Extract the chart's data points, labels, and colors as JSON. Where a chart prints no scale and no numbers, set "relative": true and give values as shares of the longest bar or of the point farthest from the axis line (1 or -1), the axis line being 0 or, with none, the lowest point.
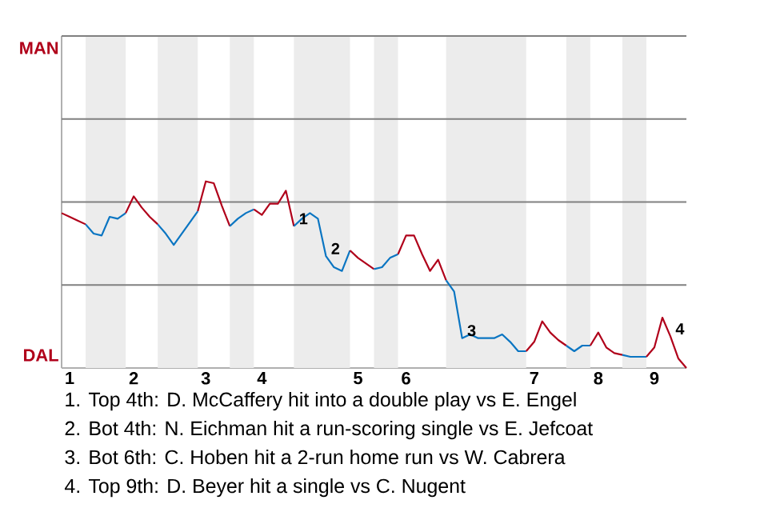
{
  "chart_data": {
    "type": "line",
    "relative": true,
    "categories": [
      null,
      "1",
      null,
      null,
      null,
      null,
      null,
      null,
      null,
      "2",
      null,
      null,
      null,
      null,
      null,
      null,
      null,
      null,
      "3",
      null,
      null,
      null,
      null,
      null,
      null,
      "4",
      null,
      null,
      null,
      null,
      null,
      null,
      null,
      null,
      null,
      null,
      null,
      "5",
      null,
      null,
      null,
      null,
      null,
      "6",
      null,
      null,
      null,
      null,
      null,
      null,
      null,
      null,
      null,
      null,
      null,
      null,
      null,
      null,
      null,
      "7",
      null,
      null,
      null,
      null,
      null,
      null,
      null,
      "8",
      null,
      null,
      null,
      null,
      null,
      null,
      "9",
      null,
      null,
      null,
      null
    ],
    "marker": "none",
    "line_style": "solid",
    "ref_lines": [
      {
        "axis": "y",
        "value": 0.445,
        "color": "#808080"
      },
      {
        "axis": "y",
        "value": 0.89,
        "color": "#808080"
      },
      {
        "axis": "y",
        "value": 1.334,
        "color": "#808080"
      },
      {
        "axis": "y",
        "value": 1.779,
        "color": "#808080"
      }
    ],
    "series": [
      {
        "color": "#b0001a",
        "values": [
          0.83,
          0.81,
          0.79,
          0.77,
          null,
          null,
          null,
          null,
          null,
          null,
          null,
          null,
          null,
          null,
          null,
          null,
          null,
          null,
          null,
          null,
          null,
          null,
          null,
          null,
          null,
          null,
          null,
          null,
          null,
          null,
          null,
          null,
          null,
          null,
          null,
          null,
          null,
          null,
          null,
          null,
          null,
          null,
          null,
          null,
          null,
          null,
          null,
          null,
          null,
          null,
          null,
          null,
          null,
          null,
          null,
          null,
          null,
          null,
          null,
          null,
          null,
          null,
          null,
          null,
          null,
          null,
          null,
          null,
          null,
          null,
          null,
          null,
          null,
          null,
          null,
          null,
          null,
          null,
          null
        ]
      },
      {
        "color": "#0a75c2",
        "values": [
          null,
          null,
          null,
          0.77,
          0.72,
          0.71,
          0.81,
          0.8,
          0.83,
          null,
          null,
          null,
          null,
          null,
          null,
          null,
          null,
          null,
          null,
          null,
          null,
          null,
          null,
          null,
          null,
          null,
          null,
          null,
          null,
          null,
          null,
          null,
          null,
          null,
          null,
          null,
          null,
          null,
          null,
          null,
          null,
          null,
          null,
          null,
          null,
          null,
          null,
          null,
          null,
          null,
          null,
          null,
          null,
          null,
          null,
          null,
          null,
          null,
          null,
          null,
          null,
          null,
          null,
          null,
          null,
          null,
          null,
          null,
          null,
          null,
          null,
          null,
          null,
          null,
          null,
          null,
          null,
          null,
          null
        ]
      },
      {
        "color": "#b0001a",
        "values": [
          null,
          null,
          null,
          null,
          null,
          null,
          null,
          null,
          0.83,
          0.92,
          0.86,
          0.81,
          0.77,
          null,
          null,
          null,
          null,
          null,
          null,
          null,
          null,
          null,
          null,
          null,
          null,
          null,
          null,
          null,
          null,
          null,
          null,
          null,
          null,
          null,
          null,
          null,
          null,
          null,
          null,
          null,
          null,
          null,
          null,
          null,
          null,
          null,
          null,
          null,
          null,
          null,
          null,
          null,
          null,
          null,
          null,
          null,
          null,
          null,
          null,
          null,
          null,
          null,
          null,
          null,
          null,
          null,
          null,
          null,
          null,
          null,
          null,
          null,
          null,
          null,
          null,
          null,
          null,
          null,
          null
        ]
      },
      {
        "color": "#0a75c2",
        "values": [
          null,
          null,
          null,
          null,
          null,
          null,
          null,
          null,
          null,
          null,
          null,
          null,
          0.77,
          0.72,
          0.66,
          0.72,
          0.78,
          0.84,
          null,
          null,
          null,
          null,
          null,
          null,
          null,
          null,
          null,
          null,
          null,
          null,
          null,
          null,
          null,
          null,
          null,
          null,
          null,
          null,
          null,
          null,
          null,
          null,
          null,
          null,
          null,
          null,
          null,
          null,
          null,
          null,
          null,
          null,
          null,
          null,
          null,
          null,
          null,
          null,
          null,
          null,
          null,
          null,
          null,
          null,
          null,
          null,
          null,
          null,
          null,
          null,
          null,
          null,
          null,
          null,
          null,
          null,
          null,
          null,
          null
        ]
      },
      {
        "color": "#b0001a",
        "values": [
          null,
          null,
          null,
          null,
          null,
          null,
          null,
          null,
          null,
          null,
          null,
          null,
          null,
          null,
          null,
          null,
          null,
          0.84,
          1,
          0.99,
          0.87,
          0.76,
          null,
          null,
          null,
          null,
          null,
          null,
          null,
          null,
          null,
          null,
          null,
          null,
          null,
          null,
          null,
          null,
          null,
          null,
          null,
          null,
          null,
          null,
          null,
          null,
          null,
          null,
          null,
          null,
          null,
          null,
          null,
          null,
          null,
          null,
          null,
          null,
          null,
          null,
          null,
          null,
          null,
          null,
          null,
          null,
          null,
          null,
          null,
          null,
          null,
          null,
          null,
          null,
          null,
          null,
          null,
          null,
          null
        ]
      },
      {
        "color": "#0a75c2",
        "values": [
          null,
          null,
          null,
          null,
          null,
          null,
          null,
          null,
          null,
          null,
          null,
          null,
          null,
          null,
          null,
          null,
          null,
          null,
          null,
          null,
          null,
          0.76,
          0.8,
          0.83,
          0.85,
          null,
          null,
          null,
          null,
          null,
          null,
          null,
          null,
          null,
          null,
          null,
          null,
          null,
          null,
          null,
          null,
          null,
          null,
          null,
          null,
          null,
          null,
          null,
          null,
          null,
          null,
          null,
          null,
          null,
          null,
          null,
          null,
          null,
          null,
          null,
          null,
          null,
          null,
          null,
          null,
          null,
          null,
          null,
          null,
          null,
          null,
          null,
          null,
          null,
          null,
          null,
          null,
          null,
          null
        ]
      },
      {
        "color": "#b0001a",
        "values": [
          null,
          null,
          null,
          null,
          null,
          null,
          null,
          null,
          null,
          null,
          null,
          null,
          null,
          null,
          null,
          null,
          null,
          null,
          null,
          null,
          null,
          null,
          null,
          null,
          0.85,
          0.82,
          0.88,
          0.88,
          0.95,
          0.76,
          null,
          null,
          null,
          null,
          null,
          null,
          null,
          null,
          null,
          null,
          null,
          null,
          null,
          null,
          null,
          null,
          null,
          null,
          null,
          null,
          null,
          null,
          null,
          null,
          null,
          null,
          null,
          null,
          null,
          null,
          null,
          null,
          null,
          null,
          null,
          null,
          null,
          null,
          null,
          null,
          null,
          null,
          null,
          null,
          null,
          null,
          null,
          null,
          null
        ]
      },
      {
        "color": "#0a75c2",
        "values": [
          null,
          null,
          null,
          null,
          null,
          null,
          null,
          null,
          null,
          null,
          null,
          null,
          null,
          null,
          null,
          null,
          null,
          null,
          null,
          null,
          null,
          null,
          null,
          null,
          null,
          null,
          null,
          null,
          null,
          0.76,
          0.8,
          0.83,
          0.8,
          0.6,
          0.54,
          0.52,
          0.63,
          null,
          null,
          null,
          null,
          null,
          null,
          null,
          null,
          null,
          null,
          null,
          null,
          null,
          null,
          null,
          null,
          null,
          null,
          null,
          null,
          null,
          null,
          null,
          null,
          null,
          null,
          null,
          null,
          null,
          null,
          null,
          null,
          null,
          null,
          null,
          null,
          null,
          null,
          null,
          null,
          null,
          null
        ]
      },
      {
        "color": "#b0001a",
        "values": [
          null,
          null,
          null,
          null,
          null,
          null,
          null,
          null,
          null,
          null,
          null,
          null,
          null,
          null,
          null,
          null,
          null,
          null,
          null,
          null,
          null,
          null,
          null,
          null,
          null,
          null,
          null,
          null,
          null,
          null,
          null,
          null,
          null,
          null,
          null,
          null,
          0.63,
          0.59,
          0.56,
          0.53,
          null,
          null,
          null,
          null,
          null,
          null,
          null,
          null,
          null,
          null,
          null,
          null,
          null,
          null,
          null,
          null,
          null,
          null,
          null,
          null,
          null,
          null,
          null,
          null,
          null,
          null,
          null,
          null,
          null,
          null,
          null,
          null,
          null,
          null,
          null,
          null,
          null,
          null,
          null
        ]
      },
      {
        "color": "#0a75c2",
        "values": [
          null,
          null,
          null,
          null,
          null,
          null,
          null,
          null,
          null,
          null,
          null,
          null,
          null,
          null,
          null,
          null,
          null,
          null,
          null,
          null,
          null,
          null,
          null,
          null,
          null,
          null,
          null,
          null,
          null,
          null,
          null,
          null,
          null,
          null,
          null,
          null,
          null,
          null,
          null,
          0.53,
          0.54,
          0.59,
          0.61,
          null,
          null,
          null,
          null,
          null,
          null,
          null,
          null,
          null,
          null,
          null,
          null,
          null,
          null,
          null,
          null,
          null,
          null,
          null,
          null,
          null,
          null,
          null,
          null,
          null,
          null,
          null,
          null,
          null,
          null,
          null,
          null,
          null,
          null,
          null,
          null
        ]
      },
      {
        "color": "#b0001a",
        "values": [
          null,
          null,
          null,
          null,
          null,
          null,
          null,
          null,
          null,
          null,
          null,
          null,
          null,
          null,
          null,
          null,
          null,
          null,
          null,
          null,
          null,
          null,
          null,
          null,
          null,
          null,
          null,
          null,
          null,
          null,
          null,
          null,
          null,
          null,
          null,
          null,
          null,
          null,
          null,
          null,
          null,
          null,
          0.61,
          0.71,
          0.71,
          0.61,
          0.52,
          0.58,
          0.47,
          null,
          null,
          null,
          null,
          null,
          null,
          null,
          null,
          null,
          null,
          null,
          null,
          null,
          null,
          null,
          null,
          null,
          null,
          null,
          null,
          null,
          null,
          null,
          null,
          null,
          null,
          null,
          null,
          null,
          null
        ]
      },
      {
        "color": "#0a75c2",
        "values": [
          null,
          null,
          null,
          null,
          null,
          null,
          null,
          null,
          null,
          null,
          null,
          null,
          null,
          null,
          null,
          null,
          null,
          null,
          null,
          null,
          null,
          null,
          null,
          null,
          null,
          null,
          null,
          null,
          null,
          null,
          null,
          null,
          null,
          null,
          null,
          null,
          null,
          null,
          null,
          null,
          null,
          null,
          null,
          null,
          null,
          null,
          null,
          null,
          0.47,
          0.41,
          0.16,
          0.18,
          0.16,
          0.16,
          0.16,
          0.18,
          0.14,
          0.09,
          0.09,
          null,
          null,
          null,
          null,
          null,
          null,
          null,
          null,
          null,
          null,
          null,
          null,
          null,
          null,
          null,
          null,
          null,
          null,
          null,
          null
        ]
      },
      {
        "color": "#b0001a",
        "values": [
          null,
          null,
          null,
          null,
          null,
          null,
          null,
          null,
          null,
          null,
          null,
          null,
          null,
          null,
          null,
          null,
          null,
          null,
          null,
          null,
          null,
          null,
          null,
          null,
          null,
          null,
          null,
          null,
          null,
          null,
          null,
          null,
          null,
          null,
          null,
          null,
          null,
          null,
          null,
          null,
          null,
          null,
          null,
          null,
          null,
          null,
          null,
          null,
          null,
          null,
          null,
          null,
          null,
          null,
          null,
          null,
          null,
          null,
          0.09,
          0.14,
          0.25,
          0.19,
          0.15,
          0.12,
          null,
          null,
          null,
          null,
          null,
          null,
          null,
          null,
          null,
          null,
          null,
          null,
          null,
          null,
          null
        ]
      },
      {
        "color": "#0a75c2",
        "values": [
          null,
          null,
          null,
          null,
          null,
          null,
          null,
          null,
          null,
          null,
          null,
          null,
          null,
          null,
          null,
          null,
          null,
          null,
          null,
          null,
          null,
          null,
          null,
          null,
          null,
          null,
          null,
          null,
          null,
          null,
          null,
          null,
          null,
          null,
          null,
          null,
          null,
          null,
          null,
          null,
          null,
          null,
          null,
          null,
          null,
          null,
          null,
          null,
          null,
          null,
          null,
          null,
          null,
          null,
          null,
          null,
          null,
          null,
          null,
          null,
          null,
          null,
          null,
          0.12,
          0.09,
          0.12,
          0.12,
          null,
          null,
          null,
          null,
          null,
          null,
          null,
          null,
          null,
          null,
          null,
          null
        ]
      },
      {
        "color": "#b0001a",
        "values": [
          null,
          null,
          null,
          null,
          null,
          null,
          null,
          null,
          null,
          null,
          null,
          null,
          null,
          null,
          null,
          null,
          null,
          null,
          null,
          null,
          null,
          null,
          null,
          null,
          null,
          null,
          null,
          null,
          null,
          null,
          null,
          null,
          null,
          null,
          null,
          null,
          null,
          null,
          null,
          null,
          null,
          null,
          null,
          null,
          null,
          null,
          null,
          null,
          null,
          null,
          null,
          null,
          null,
          null,
          null,
          null,
          null,
          null,
          null,
          null,
          null,
          null,
          null,
          null,
          null,
          null,
          0.12,
          0.19,
          0.11,
          0.08,
          0.07,
          null,
          null,
          null,
          null,
          null,
          null,
          null,
          null
        ]
      },
      {
        "color": "#0a75c2",
        "values": [
          null,
          null,
          null,
          null,
          null,
          null,
          null,
          null,
          null,
          null,
          null,
          null,
          null,
          null,
          null,
          null,
          null,
          null,
          null,
          null,
          null,
          null,
          null,
          null,
          null,
          null,
          null,
          null,
          null,
          null,
          null,
          null,
          null,
          null,
          null,
          null,
          null,
          null,
          null,
          null,
          null,
          null,
          null,
          null,
          null,
          null,
          null,
          null,
          null,
          null,
          null,
          null,
          null,
          null,
          null,
          null,
          null,
          null,
          null,
          null,
          null,
          null,
          null,
          null,
          null,
          null,
          null,
          null,
          null,
          null,
          0.07,
          0.06,
          0.06,
          0.06,
          null,
          null,
          null,
          null,
          null
        ]
      },
      {
        "color": "#b0001a",
        "values": [
          null,
          null,
          null,
          null,
          null,
          null,
          null,
          null,
          null,
          null,
          null,
          null,
          null,
          null,
          null,
          null,
          null,
          null,
          null,
          null,
          null,
          null,
          null,
          null,
          null,
          null,
          null,
          null,
          null,
          null,
          null,
          null,
          null,
          null,
          null,
          null,
          null,
          null,
          null,
          null,
          null,
          null,
          null,
          null,
          null,
          null,
          null,
          null,
          null,
          null,
          null,
          null,
          null,
          null,
          null,
          null,
          null,
          null,
          null,
          null,
          null,
          null,
          null,
          null,
          null,
          null,
          null,
          null,
          null,
          null,
          null,
          null,
          null,
          0.06,
          0.11,
          0.27,
          0.17,
          0.05,
          0
        ]
      }
    ],
    "annotations": [
      "MAN",
      "DAL",
      "1. Top 4th: D. McCaffery hit into a double play vs E. Engel",
      "2. Bot 4th: N. Eichman hit a run-scoring single vs E. Jefcoat",
      "3. Bot 6th: C. Hoben hit a 2-run home run vs W. Cabrera",
      "4. Top 9th: D. Beyer hit a single vs C. Nugent",
      "1",
      "2",
      "3",
      "4"
    ]
  }
}
